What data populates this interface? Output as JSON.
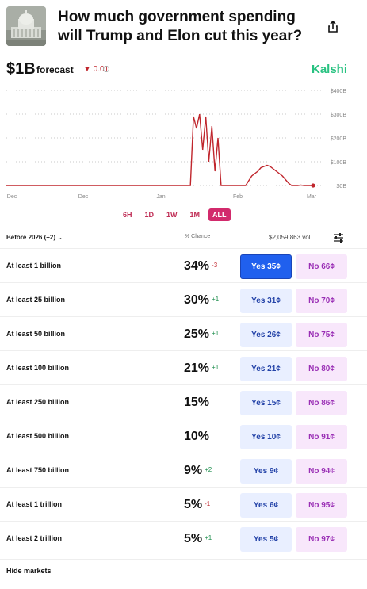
{
  "question": {
    "title": "How much government spending will Trump and Elon cut this year?",
    "thumbnail_icon": "capitol-building-image"
  },
  "forecast": {
    "value": "$1B",
    "label": "forecast",
    "change": "▼ 0.01",
    "change_color": "#c0262d"
  },
  "brand": {
    "name": "Kalshi",
    "color": "#28c281"
  },
  "chart_data": {
    "type": "line",
    "x_tick_labels": [
      "Dec",
      "Dec",
      "Jan",
      "Feb",
      "Mar"
    ],
    "y_tick_labels": [
      "$400B",
      "$300B",
      "$200B",
      "$100B",
      "$0B"
    ],
    "ylim": [
      0,
      400
    ],
    "grid": "dotted-horizontal",
    "series": [
      {
        "color": "#c0262d",
        "x": [
          0,
          5,
          10,
          15,
          20,
          25,
          30,
          35,
          40,
          45,
          50,
          55,
          58,
          60,
          61,
          62,
          63,
          64,
          65,
          66,
          67,
          68,
          69,
          70,
          72,
          75,
          78,
          80,
          82,
          83,
          84,
          85,
          86,
          87,
          88,
          90,
          92,
          93,
          95,
          96,
          97,
          98,
          100
        ],
        "y": [
          0,
          0,
          0,
          0,
          0,
          0,
          0,
          0,
          0,
          0,
          0,
          0,
          0,
          0,
          290,
          240,
          300,
          150,
          290,
          100,
          250,
          60,
          200,
          0,
          0,
          0,
          0,
          40,
          60,
          75,
          80,
          85,
          80,
          70,
          60,
          40,
          10,
          0,
          0,
          2,
          0,
          0,
          0
        ]
      }
    ],
    "end_marker_value": 0
  },
  "time_ranges": [
    {
      "label": "6H",
      "active": false
    },
    {
      "label": "1D",
      "active": false
    },
    {
      "label": "1W",
      "active": false
    },
    {
      "label": "1M",
      "active": false
    },
    {
      "label": "ALL",
      "active": true
    }
  ],
  "table_header": {
    "filter": "Before 2026 (+2)",
    "chance": "% Chance",
    "volume": "$2,059,863 vol"
  },
  "markets": [
    {
      "label": "At least 1 billion",
      "chance": "34%",
      "delta": "-3",
      "delta_dir": "neg",
      "yes": "Yes 35¢",
      "no": "No 66¢",
      "yes_selected": true
    },
    {
      "label": "At least 25 billion",
      "chance": "30%",
      "delta": "+1",
      "delta_dir": "pos",
      "yes": "Yes 31¢",
      "no": "No 70¢",
      "yes_selected": false
    },
    {
      "label": "At least 50 billion",
      "chance": "25%",
      "delta": "+1",
      "delta_dir": "pos",
      "yes": "Yes 26¢",
      "no": "No 75¢",
      "yes_selected": false
    },
    {
      "label": "At least 100 billion",
      "chance": "21%",
      "delta": "+1",
      "delta_dir": "pos",
      "yes": "Yes 21¢",
      "no": "No 80¢",
      "yes_selected": false
    },
    {
      "label": "At least 250 billion",
      "chance": "15%",
      "delta": "",
      "delta_dir": "none",
      "yes": "Yes 15¢",
      "no": "No 86¢",
      "yes_selected": false
    },
    {
      "label": "At least 500 billion",
      "chance": "10%",
      "delta": "",
      "delta_dir": "none",
      "yes": "Yes 10¢",
      "no": "No 91¢",
      "yes_selected": false
    },
    {
      "label": "At least 750 billion",
      "chance": "9%",
      "delta": "+2",
      "delta_dir": "pos",
      "yes": "Yes 9¢",
      "no": "No 94¢",
      "yes_selected": false
    },
    {
      "label": "At least 1 trillion",
      "chance": "5%",
      "delta": "-1",
      "delta_dir": "neg",
      "yes": "Yes 6¢",
      "no": "No 95¢",
      "yes_selected": false
    },
    {
      "label": "At least 2 trillion",
      "chance": "5%",
      "delta": "+1",
      "delta_dir": "pos",
      "yes": "Yes 5¢",
      "no": "No 97¢",
      "yes_selected": false
    }
  ],
  "footer": {
    "hide_markets": "Hide markets"
  }
}
